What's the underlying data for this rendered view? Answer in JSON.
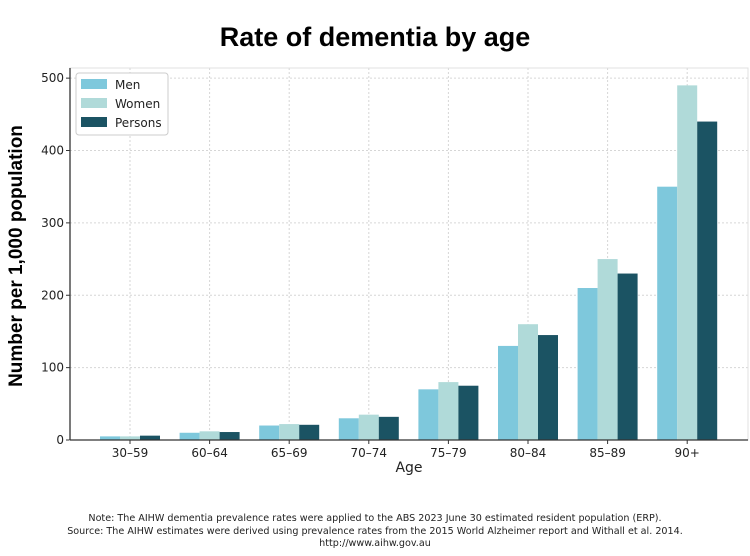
{
  "chart_data": {
    "type": "bar",
    "title": "Rate of dementia by age",
    "xlabel": "Age",
    "ylabel": "Number per 1,000 population",
    "categories": [
      "30–59",
      "60–64",
      "65–69",
      "70–74",
      "75–79",
      "80–84",
      "85–89",
      "90+"
    ],
    "series": [
      {
        "name": "Men",
        "color": "#7ec8dc",
        "values": [
          5,
          10,
          20,
          30,
          70,
          130,
          210,
          350
        ]
      },
      {
        "name": "Women",
        "color": "#b0dad9",
        "values": [
          5,
          12,
          22,
          35,
          80,
          160,
          250,
          490
        ]
      },
      {
        "name": "Persons",
        "color": "#1b5363",
        "values": [
          6,
          11,
          21,
          32,
          75,
          145,
          230,
          440
        ]
      }
    ],
    "ylim": [
      0,
      514
    ],
    "yticks": [
      0,
      100,
      200,
      300,
      400,
      500
    ],
    "grid": true,
    "legend_placement": "top-left"
  },
  "notes": {
    "line1": "Note: The AIHW dementia prevalence rates were applied to the ABS 2023 June 30 estimated resident population (ERP).",
    "line2": "Source: The AIHW estimates were derived using prevalence rates from the 2015 World Alzheimer report and Withall et al. 2014.",
    "line3": "http://www.aihw.gov.au"
  }
}
